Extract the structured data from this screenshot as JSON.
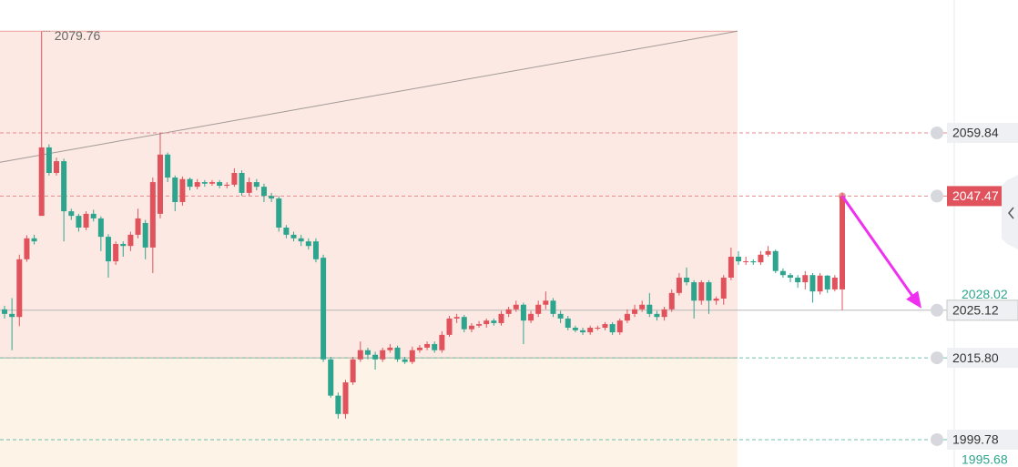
{
  "chart_data": {
    "type": "candlestick",
    "open": [
      2025.3,
      2024.4,
      2023.8,
      2035.1,
      2039.2,
      2043.6,
      2057.0,
      2052.0,
      2054.3,
      2044.5,
      2043.6,
      2041.3,
      2044.0,
      2043.1,
      2039.5,
      2034.7,
      2038.1,
      2037.7,
      2039.9,
      2042.2,
      2037.4,
      2044.0,
      2055.6,
      2051.1,
      2046.3,
      2050.8,
      2049.3,
      2050.2,
      2049.9,
      2050.2,
      2049.5,
      2049.7,
      2052.0,
      2048.1,
      2050.2,
      2049.3,
      2047.5,
      2047.0,
      2041.3,
      2039.9,
      2039.2,
      2038.6,
      2038.6,
      2035.4,
      2015.5,
      2008.4,
      2004.8,
      2011.0,
      2015.5,
      2017.3,
      2016.4,
      2015.5,
      2017.3,
      2017.8,
      2015.5,
      2015.0,
      2017.3,
      2017.8,
      2018.5,
      2017.3,
      2020.3,
      2023.5,
      2023.8,
      2021.4,
      2022.1,
      2022.4,
      2023.1,
      2022.6,
      2024.4,
      2025.3,
      2026.2,
      2023.1,
      2024.4,
      2026.2,
      2027.0,
      2024.4,
      2023.5,
      2021.7,
      2021.2,
      2020.8,
      2021.7,
      2021.7,
      2022.4,
      2020.8,
      2023.1,
      2024.4,
      2025.3,
      2026.2,
      2024.4,
      2023.8,
      2025.3,
      2028.5,
      2031.5,
      2030.6,
      2027.0,
      2030.6,
      2027.0,
      2027.4,
      2031.5,
      2035.6,
      2034.7,
      2034.7,
      2034.5,
      2036.0,
      2036.7,
      2032.8,
      2032.0,
      2031.5,
      2030.6,
      2032.0,
      2028.8,
      2031.9,
      2029.2,
      2029.2
    ],
    "high": [
      2026.0,
      2027.5,
      2036.0,
      2039.8,
      2039.9,
      2079.76,
      2057.6,
      2055.0,
      2054.8,
      2045.0,
      2044.0,
      2044.5,
      2044.8,
      2043.5,
      2040.0,
      2038.6,
      2038.6,
      2040.5,
      2045.0,
      2042.8,
      2051.1,
      2059.84,
      2056.0,
      2051.5,
      2051.3,
      2051.1,
      2050.8,
      2050.6,
      2050.6,
      2050.6,
      2050.2,
      2052.9,
      2052.5,
      2051.1,
      2050.8,
      2049.9,
      2048.1,
      2047.5,
      2041.8,
      2040.5,
      2039.9,
      2039.2,
      2039.2,
      2036.0,
      2016.0,
      2009.0,
      2011.5,
      2016.0,
      2019.0,
      2017.8,
      2017.0,
      2017.8,
      2018.5,
      2018.2,
      2016.0,
      2018.0,
      2018.3,
      2019.0,
      2019.0,
      2021.0,
      2024.0,
      2024.4,
      2024.2,
      2022.6,
      2023.0,
      2023.5,
      2023.5,
      2025.0,
      2025.8,
      2027.0,
      2026.6,
      2025.0,
      2027.0,
      2028.8,
      2027.5,
      2025.0,
      2024.0,
      2022.1,
      2021.7,
      2022.1,
      2022.1,
      2022.8,
      2022.8,
      2023.5,
      2025.3,
      2026.2,
      2027.0,
      2028.5,
      2025.0,
      2025.8,
      2029.2,
      2032.4,
      2033.5,
      2031.0,
      2031.0,
      2031.0,
      2027.8,
      2032.0,
      2037.4,
      2036.7,
      2035.6,
      2035.1,
      2036.7,
      2037.7,
      2037.0,
      2033.3,
      2032.4,
      2032.0,
      2032.8,
      2032.4,
      2032.4,
      2032.0,
      2032.0,
      2048.1
    ],
    "low": [
      2023.5,
      2017.3,
      2022.0,
      2034.6,
      2038.0,
      2043.6,
      2051.5,
      2051.5,
      2038.6,
      2042.8,
      2040.5,
      2040.8,
      2042.5,
      2036.7,
      2031.5,
      2034.0,
      2035.6,
      2036.7,
      2039.2,
      2035.1,
      2032.4,
      2043.1,
      2050.2,
      2044.5,
      2045.6,
      2048.6,
      2048.8,
      2049.3,
      2049.5,
      2049.0,
      2049.0,
      2049.3,
      2047.5,
      2047.5,
      2048.6,
      2046.3,
      2046.3,
      2040.5,
      2039.2,
      2038.6,
      2037.7,
      2037.0,
      2034.5,
      2015.0,
      2008.0,
      2003.9,
      2003.9,
      2010.5,
      2015.0,
      2015.5,
      2013.5,
      2015.0,
      2016.8,
      2015.0,
      2014.6,
      2014.6,
      2016.8,
      2017.3,
      2016.8,
      2016.8,
      2019.9,
      2022.6,
      2020.8,
      2020.8,
      2021.7,
      2021.7,
      2022.1,
      2022.1,
      2023.8,
      2024.8,
      2018.5,
      2022.6,
      2023.8,
      2025.3,
      2023.8,
      2022.6,
      2021.2,
      2020.8,
      2020.3,
      2020.3,
      2021.2,
      2021.2,
      2020.3,
      2020.3,
      2022.6,
      2023.8,
      2024.8,
      2023.8,
      2023.1,
      2023.1,
      2024.8,
      2028.0,
      2030.0,
      2023.5,
      2026.2,
      2024.4,
      2026.2,
      2026.2,
      2031.0,
      2034.0,
      2034.0,
      2034.0,
      2034.0,
      2035.6,
      2032.4,
      2031.5,
      2030.6,
      2029.5,
      2029.2,
      2026.6,
      2028.2,
      2028.5,
      2028.8,
      2025.12
    ],
    "close": [
      2024.4,
      2023.8,
      2035.1,
      2039.2,
      2038.6,
      2057.0,
      2052.0,
      2054.3,
      2044.5,
      2043.6,
      2041.3,
      2044.0,
      2043.1,
      2039.5,
      2034.7,
      2038.1,
      2037.7,
      2039.9,
      2043.1,
      2037.4,
      2050.2,
      2055.6,
      2051.1,
      2046.3,
      2050.8,
      2049.3,
      2050.2,
      2049.9,
      2050.2,
      2049.5,
      2049.7,
      2052.0,
      2048.1,
      2050.2,
      2049.3,
      2047.5,
      2047.0,
      2041.3,
      2039.9,
      2039.2,
      2038.6,
      2037.7,
      2035.1,
      2015.5,
      2008.4,
      2004.8,
      2011.0,
      2015.5,
      2017.3,
      2016.4,
      2015.5,
      2017.3,
      2017.8,
      2015.5,
      2015.0,
      2017.3,
      2017.8,
      2018.5,
      2017.3,
      2020.3,
      2023.5,
      2023.8,
      2021.4,
      2022.1,
      2022.4,
      2023.1,
      2022.6,
      2024.4,
      2025.3,
      2026.2,
      2023.1,
      2024.4,
      2026.2,
      2027.0,
      2024.4,
      2023.5,
      2021.7,
      2021.2,
      2020.8,
      2021.7,
      2021.7,
      2022.4,
      2020.8,
      2023.1,
      2024.4,
      2025.3,
      2026.2,
      2024.4,
      2023.8,
      2025.3,
      2028.5,
      2031.5,
      2030.6,
      2027.0,
      2030.6,
      2027.0,
      2027.4,
      2031.5,
      2035.6,
      2034.7,
      2034.7,
      2034.5,
      2036.0,
      2036.7,
      2032.8,
      2032.0,
      2031.5,
      2030.6,
      2032.0,
      2028.8,
      2031.9,
      2029.2,
      2031.5,
      2047.47
    ],
    "up_color": "#e0535d",
    "down_color": "#2da58e",
    "ylim": [
      1994.43,
      2085.86
    ],
    "yticks": [
      2028.02,
      1995.68
    ],
    "ytick_color": "#2da58e",
    "high_label_index": 5,
    "zones": [
      {
        "top": 2079.76,
        "bottom": 2015.8,
        "color": "#fde9e3",
        "border": "#e8a39b"
      },
      {
        "top": 2015.8,
        "bottom": 1990,
        "color": "#fdf3e6",
        "border": "#b5ab9c"
      }
    ],
    "trend_line": {
      "start": 2054.1,
      "end": 2079.76,
      "color": "#a09a98"
    },
    "price_lines": [
      {
        "value": 2059.84,
        "color": "#e58b8f",
        "style": "dashed"
      },
      {
        "value": 2047.47,
        "color": "#e58b8f",
        "style": "dashed",
        "label_bg": "#e0535d",
        "label_color": "#ffffff"
      },
      {
        "value": 2025.12,
        "color": "#b8b8b8",
        "style": "solid"
      },
      {
        "value": 2015.8,
        "label": "2015.80",
        "color": "#6fc2ad",
        "style": "dashed"
      },
      {
        "value": 1999.78,
        "color": "#6fc2ad",
        "style": "dashed"
      }
    ],
    "arrow": {
      "color": "#f030f0"
    }
  }
}
